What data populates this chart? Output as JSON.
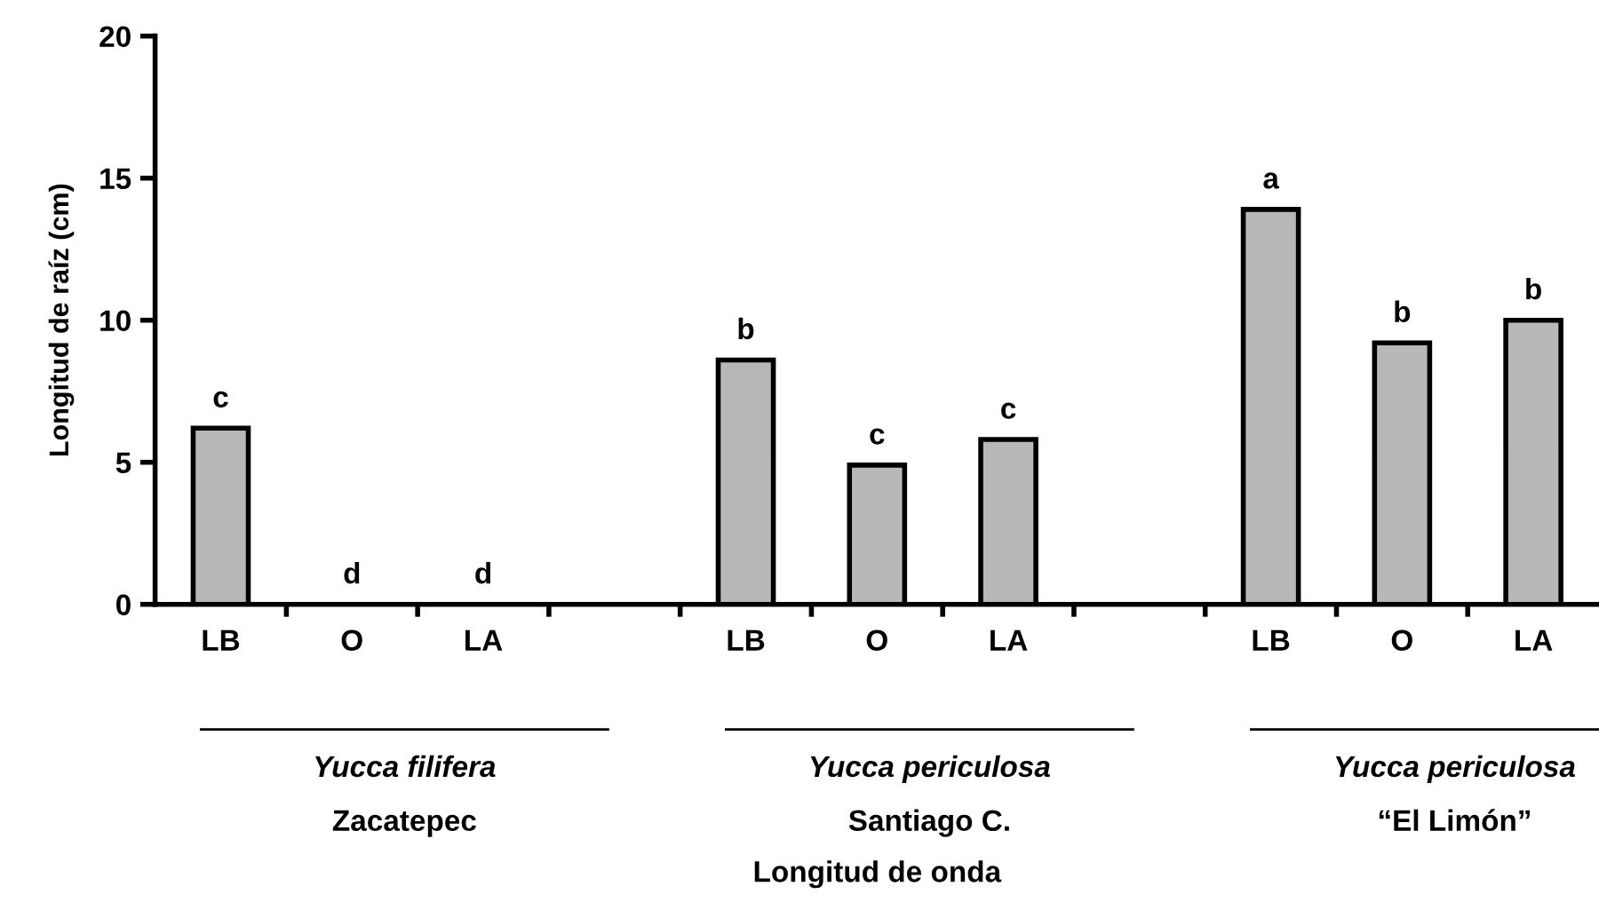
{
  "chart_data": {
    "type": "bar",
    "ylabel": "Longitud de raíz (cm)",
    "categories": [
      "LB",
      "O",
      "LA",
      null,
      "LB",
      "O",
      "LA",
      null,
      "LB",
      "O",
      "LA"
    ],
    "values": [
      6.2,
      0,
      0,
      null,
      8.6,
      4.9,
      5.8,
      null,
      13.9,
      9.2,
      10.0
    ],
    "value_labels": [
      "c",
      "d",
      "d",
      null,
      "b",
      "c",
      "c",
      null,
      "a",
      "b",
      "b"
    ],
    "color": "#b8b8b8",
    "ylim": [
      0,
      20
    ],
    "yticks": [
      0,
      5,
      10,
      15,
      20
    ],
    "grid": false,
    "legend": false,
    "annotations": [
      "Yucca filifera",
      "Zacatepec",
      "Yucca periculosa",
      "Santiago C.",
      "Yucca periculosa",
      "“El Limón”",
      "Longitud de onda"
    ]
  }
}
